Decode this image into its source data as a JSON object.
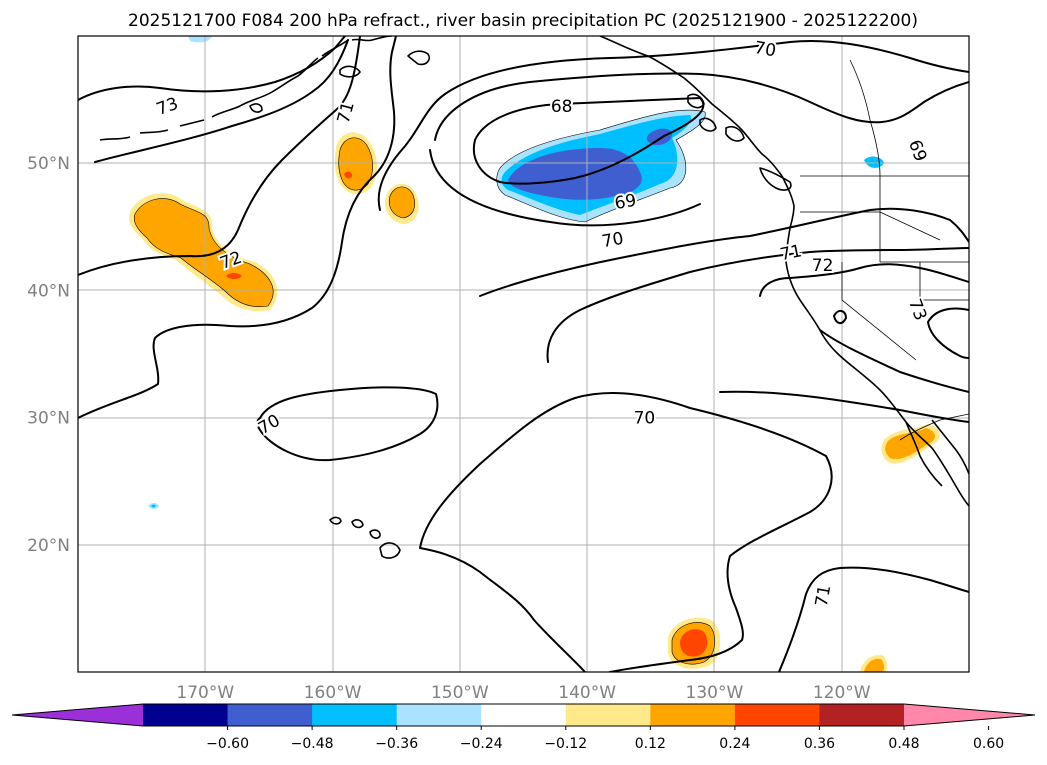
{
  "title": "2025121700 F084 200 hPa refract., river basin precipitation PC (2025121900 - 2025122200)",
  "axes": {
    "lon_range": [
      -180,
      -110
    ],
    "lat_range": [
      10,
      60
    ],
    "lon_ticks": [
      {
        "value": -170,
        "label": "170°W"
      },
      {
        "value": -160,
        "label": "160°W"
      },
      {
        "value": -150,
        "label": "150°W"
      },
      {
        "value": -140,
        "label": "140°W"
      },
      {
        "value": -130,
        "label": "130°W"
      },
      {
        "value": -120,
        "label": "120°W"
      }
    ],
    "lat_ticks": [
      {
        "value": 50,
        "label": "50°N"
      },
      {
        "value": 40,
        "label": "40°N"
      },
      {
        "value": 30,
        "label": "30°N"
      },
      {
        "value": 20,
        "label": "20°N"
      }
    ],
    "grid": true
  },
  "colorbar": {
    "extend": "both",
    "colors": [
      "#9b30d9",
      "#000090",
      "#3f5fd0",
      "#00bfff",
      "#aae3ff",
      "#ffffff",
      "#ffe98a",
      "#ffa500",
      "#ff4500",
      "#b22222",
      "#ff88aa"
    ],
    "tick_labels": [
      "−0.60",
      "−0.48",
      "−0.36",
      "−0.24",
      "−0.12",
      "0.12",
      "0.24",
      "0.36",
      "0.48",
      "0.60"
    ]
  },
  "contour_labels": [
    {
      "text": "73",
      "lon": -173,
      "lat": 54.5,
      "angle": -20
    },
    {
      "text": "71",
      "lon": -159,
      "lat": 54,
      "angle": -75
    },
    {
      "text": "68",
      "lon": -142,
      "lat": 54.5,
      "angle": 0
    },
    {
      "text": "70",
      "lon": -126,
      "lat": 59,
      "angle": 10
    },
    {
      "text": "69",
      "lon": -114,
      "lat": 51,
      "angle": 70
    },
    {
      "text": "69",
      "lon": -137,
      "lat": 47,
      "angle": -10
    },
    {
      "text": "70",
      "lon": -138,
      "lat": 44,
      "angle": -10
    },
    {
      "text": "71",
      "lon": -124,
      "lat": 43,
      "angle": -12
    },
    {
      "text": "72",
      "lon": -121.5,
      "lat": 42,
      "angle": 0
    },
    {
      "text": "72",
      "lon": -168,
      "lat": 42.4,
      "angle": -20
    },
    {
      "text": "73",
      "lon": -114,
      "lat": 38.5,
      "angle": 70
    },
    {
      "text": "70",
      "lon": -165,
      "lat": 29.5,
      "angle": -30
    },
    {
      "text": "70",
      "lon": -135.5,
      "lat": 30,
      "angle": 0
    },
    {
      "text": "71",
      "lon": -121.5,
      "lat": 16,
      "angle": -80
    }
  ]
}
